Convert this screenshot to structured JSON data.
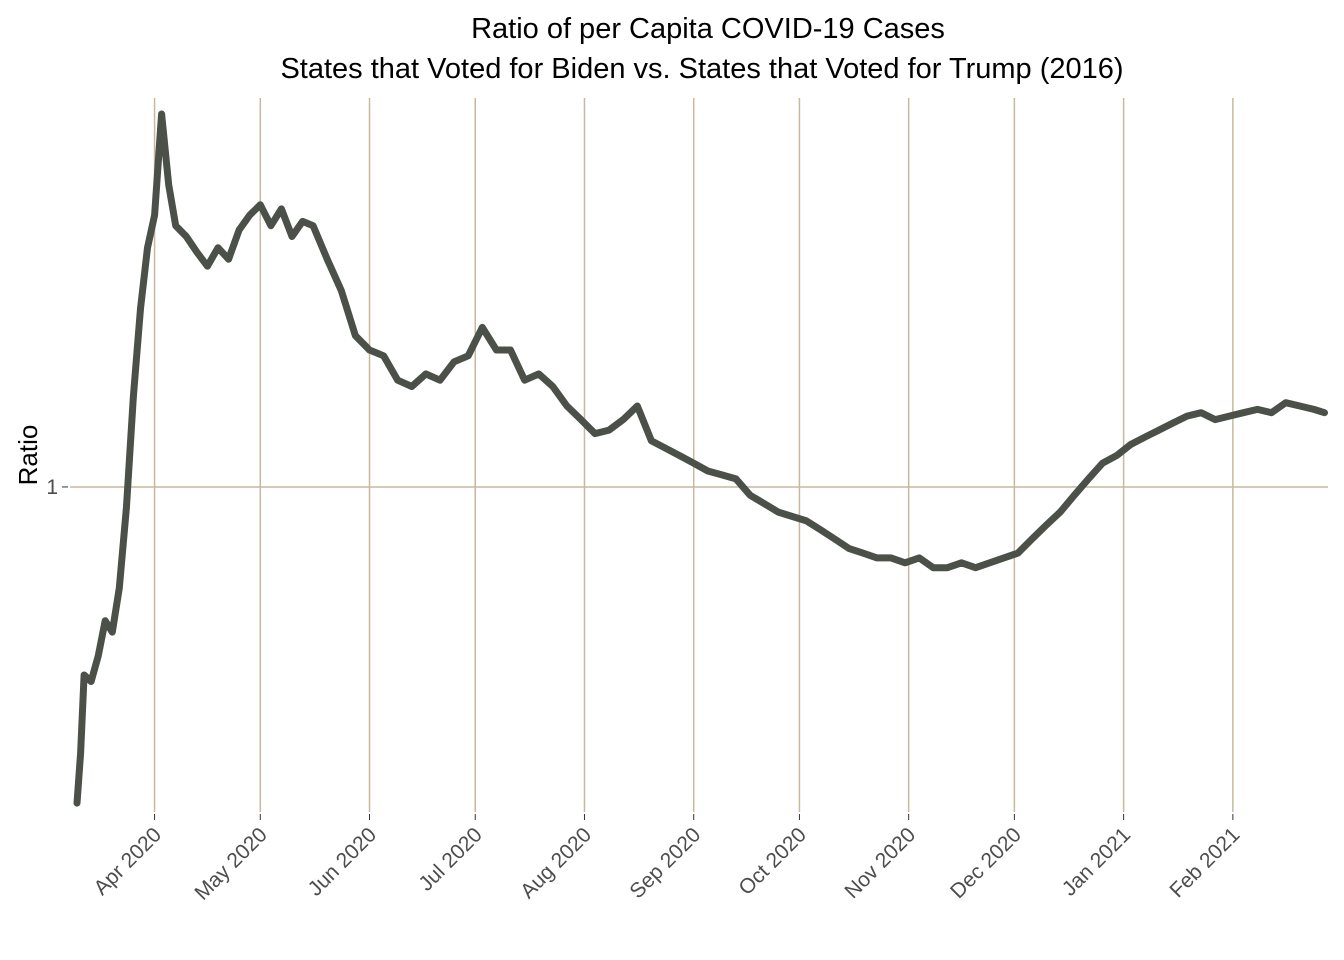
{
  "chart_data": {
    "type": "line",
    "title": "Ratio of per Capita COVID-19 Cases",
    "subtitle": "States that Voted for Biden vs. States that Voted for Trump (2016)",
    "xlabel": "",
    "ylabel": "Ratio",
    "y_scale": "log",
    "y_ticks": [
      {
        "value": 1,
        "label": "1"
      }
    ],
    "ylim": [
      0.45,
      2.6
    ],
    "xlim": [
      "2020-03-08",
      "2021-02-28"
    ],
    "x_ticks": [
      {
        "date": "2020-04-01",
        "label": "Apr 2020"
      },
      {
        "date": "2020-05-01",
        "label": "May 2020"
      },
      {
        "date": "2020-06-01",
        "label": "Jun 2020"
      },
      {
        "date": "2020-07-01",
        "label": "Jul 2020"
      },
      {
        "date": "2020-08-01",
        "label": "Aug 2020"
      },
      {
        "date": "2020-09-01",
        "label": "Sep 2020"
      },
      {
        "date": "2020-10-01",
        "label": "Oct 2020"
      },
      {
        "date": "2020-11-01",
        "label": "Nov 2020"
      },
      {
        "date": "2020-12-01",
        "label": "Dec 2020"
      },
      {
        "date": "2021-01-01",
        "label": "Jan 2021"
      },
      {
        "date": "2021-02-01",
        "label": "Feb 2021"
      }
    ],
    "grid": "vertical at x ticks, horizontal at y tick",
    "colors": {
      "line": "#4b5049",
      "grid": "#c8b89e",
      "background": "#ffffff"
    },
    "series": [
      {
        "x": [
          "2020-03-10",
          "2020-03-11",
          "2020-03-12",
          "2020-03-14",
          "2020-03-16",
          "2020-03-18",
          "2020-03-20",
          "2020-03-22",
          "2020-03-24",
          "2020-03-26",
          "2020-03-28",
          "2020-03-30",
          "2020-04-01",
          "2020-04-03",
          "2020-04-05",
          "2020-04-07",
          "2020-04-10",
          "2020-04-13",
          "2020-04-16",
          "2020-04-19",
          "2020-04-22",
          "2020-04-25",
          "2020-04-28",
          "2020-05-01",
          "2020-05-04",
          "2020-05-07",
          "2020-05-10",
          "2020-05-13",
          "2020-05-16",
          "2020-05-20",
          "2020-05-24",
          "2020-05-28",
          "2020-06-01",
          "2020-06-05",
          "2020-06-09",
          "2020-06-13",
          "2020-06-17",
          "2020-06-21",
          "2020-06-25",
          "2020-06-29",
          "2020-07-03",
          "2020-07-07",
          "2020-07-11",
          "2020-07-15",
          "2020-07-19",
          "2020-07-23",
          "2020-07-27",
          "2020-07-31",
          "2020-08-04",
          "2020-08-08",
          "2020-08-12",
          "2020-08-16",
          "2020-08-20",
          "2020-08-24",
          "2020-08-28",
          "2020-09-01",
          "2020-09-05",
          "2020-09-09",
          "2020-09-13",
          "2020-09-17",
          "2020-09-21",
          "2020-09-25",
          "2020-09-29",
          "2020-10-03",
          "2020-10-07",
          "2020-10-11",
          "2020-10-15",
          "2020-10-19",
          "2020-10-23",
          "2020-10-27",
          "2020-10-31",
          "2020-11-04",
          "2020-11-08",
          "2020-11-12",
          "2020-11-16",
          "2020-11-20",
          "2020-11-24",
          "2020-11-28",
          "2020-12-02",
          "2020-12-06",
          "2020-12-10",
          "2020-12-14",
          "2020-12-18",
          "2020-12-22",
          "2020-12-26",
          "2020-12-30",
          "2021-01-03",
          "2021-01-07",
          "2021-01-11",
          "2021-01-15",
          "2021-01-19",
          "2021-01-23",
          "2021-01-27",
          "2021-01-31",
          "2021-02-04",
          "2021-02-08",
          "2021-02-12",
          "2021-02-16",
          "2021-02-20",
          "2021-02-24",
          "2021-02-27"
        ],
        "y": [
          0.46,
          0.52,
          0.63,
          0.62,
          0.66,
          0.72,
          0.7,
          0.78,
          0.95,
          1.25,
          1.55,
          1.8,
          1.95,
          2.5,
          2.1,
          1.9,
          1.85,
          1.78,
          1.72,
          1.8,
          1.75,
          1.88,
          1.95,
          2.0,
          1.9,
          1.98,
          1.85,
          1.92,
          1.9,
          1.75,
          1.62,
          1.45,
          1.4,
          1.38,
          1.3,
          1.28,
          1.32,
          1.3,
          1.36,
          1.38,
          1.48,
          1.4,
          1.4,
          1.3,
          1.32,
          1.28,
          1.22,
          1.18,
          1.14,
          1.15,
          1.18,
          1.22,
          1.12,
          1.1,
          1.08,
          1.06,
          1.04,
          1.03,
          1.02,
          0.98,
          0.96,
          0.94,
          0.93,
          0.92,
          0.9,
          0.88,
          0.86,
          0.85,
          0.84,
          0.84,
          0.83,
          0.84,
          0.82,
          0.82,
          0.83,
          0.82,
          0.83,
          0.84,
          0.85,
          0.88,
          0.91,
          0.94,
          0.98,
          1.02,
          1.06,
          1.08,
          1.11,
          1.13,
          1.15,
          1.17,
          1.19,
          1.2,
          1.18,
          1.19,
          1.2,
          1.21,
          1.2,
          1.23,
          1.22,
          1.21,
          1.2
        ]
      }
    ]
  }
}
